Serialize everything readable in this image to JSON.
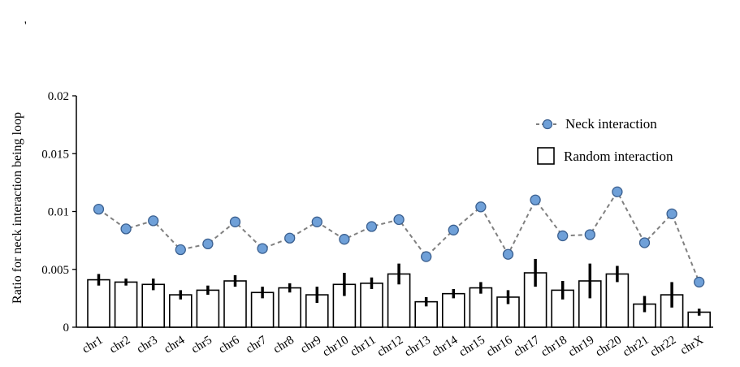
{
  "chart_data": {
    "type": "bar",
    "ylabel": "Ratio for neck interaction being loop",
    "ylim": [
      0,
      0.02
    ],
    "yticks": [
      "0",
      "0.005",
      "0.01",
      "0.015",
      "0.02"
    ],
    "categories": [
      "chr1",
      "chr2",
      "chr3",
      "chr4",
      "chr5",
      "chr6",
      "chr7",
      "chr8",
      "chr9",
      "chr10",
      "chr11",
      "chr12",
      "chr13",
      "chr14",
      "chr15",
      "chr16",
      "chr17",
      "chr18",
      "chr19",
      "chr20",
      "chr21",
      "chr22",
      "chrX"
    ],
    "legend_position": "top-right",
    "series": [
      {
        "name": "Neck interaction",
        "kind": "line",
        "color": "#6fa0d8",
        "values": [
          0.0102,
          0.0085,
          0.0092,
          0.0067,
          0.0072,
          0.0091,
          0.0068,
          0.0077,
          0.0091,
          0.0076,
          0.0087,
          0.0093,
          0.0061,
          0.0084,
          0.0104,
          0.0063,
          0.011,
          0.0079,
          0.008,
          0.0117,
          0.0073,
          0.0098,
          0.0039
        ]
      },
      {
        "name": "Random interaction",
        "kind": "bar",
        "color": "#ffffff",
        "values": [
          0.0041,
          0.0039,
          0.0037,
          0.0028,
          0.0032,
          0.004,
          0.003,
          0.0034,
          0.0028,
          0.0037,
          0.0038,
          0.0046,
          0.0022,
          0.0029,
          0.0034,
          0.0026,
          0.0047,
          0.0032,
          0.004,
          0.0046,
          0.002,
          0.0028,
          0.0013
        ],
        "error": [
          0.0005,
          0.0003,
          0.0005,
          0.0004,
          0.0004,
          0.0005,
          0.0005,
          0.0004,
          0.0007,
          0.001,
          0.0005,
          0.0009,
          0.0004,
          0.0004,
          0.0005,
          0.0006,
          0.0012,
          0.0008,
          0.0015,
          0.0007,
          0.0007,
          0.0011,
          0.0003
        ]
      }
    ]
  },
  "marker": "'"
}
